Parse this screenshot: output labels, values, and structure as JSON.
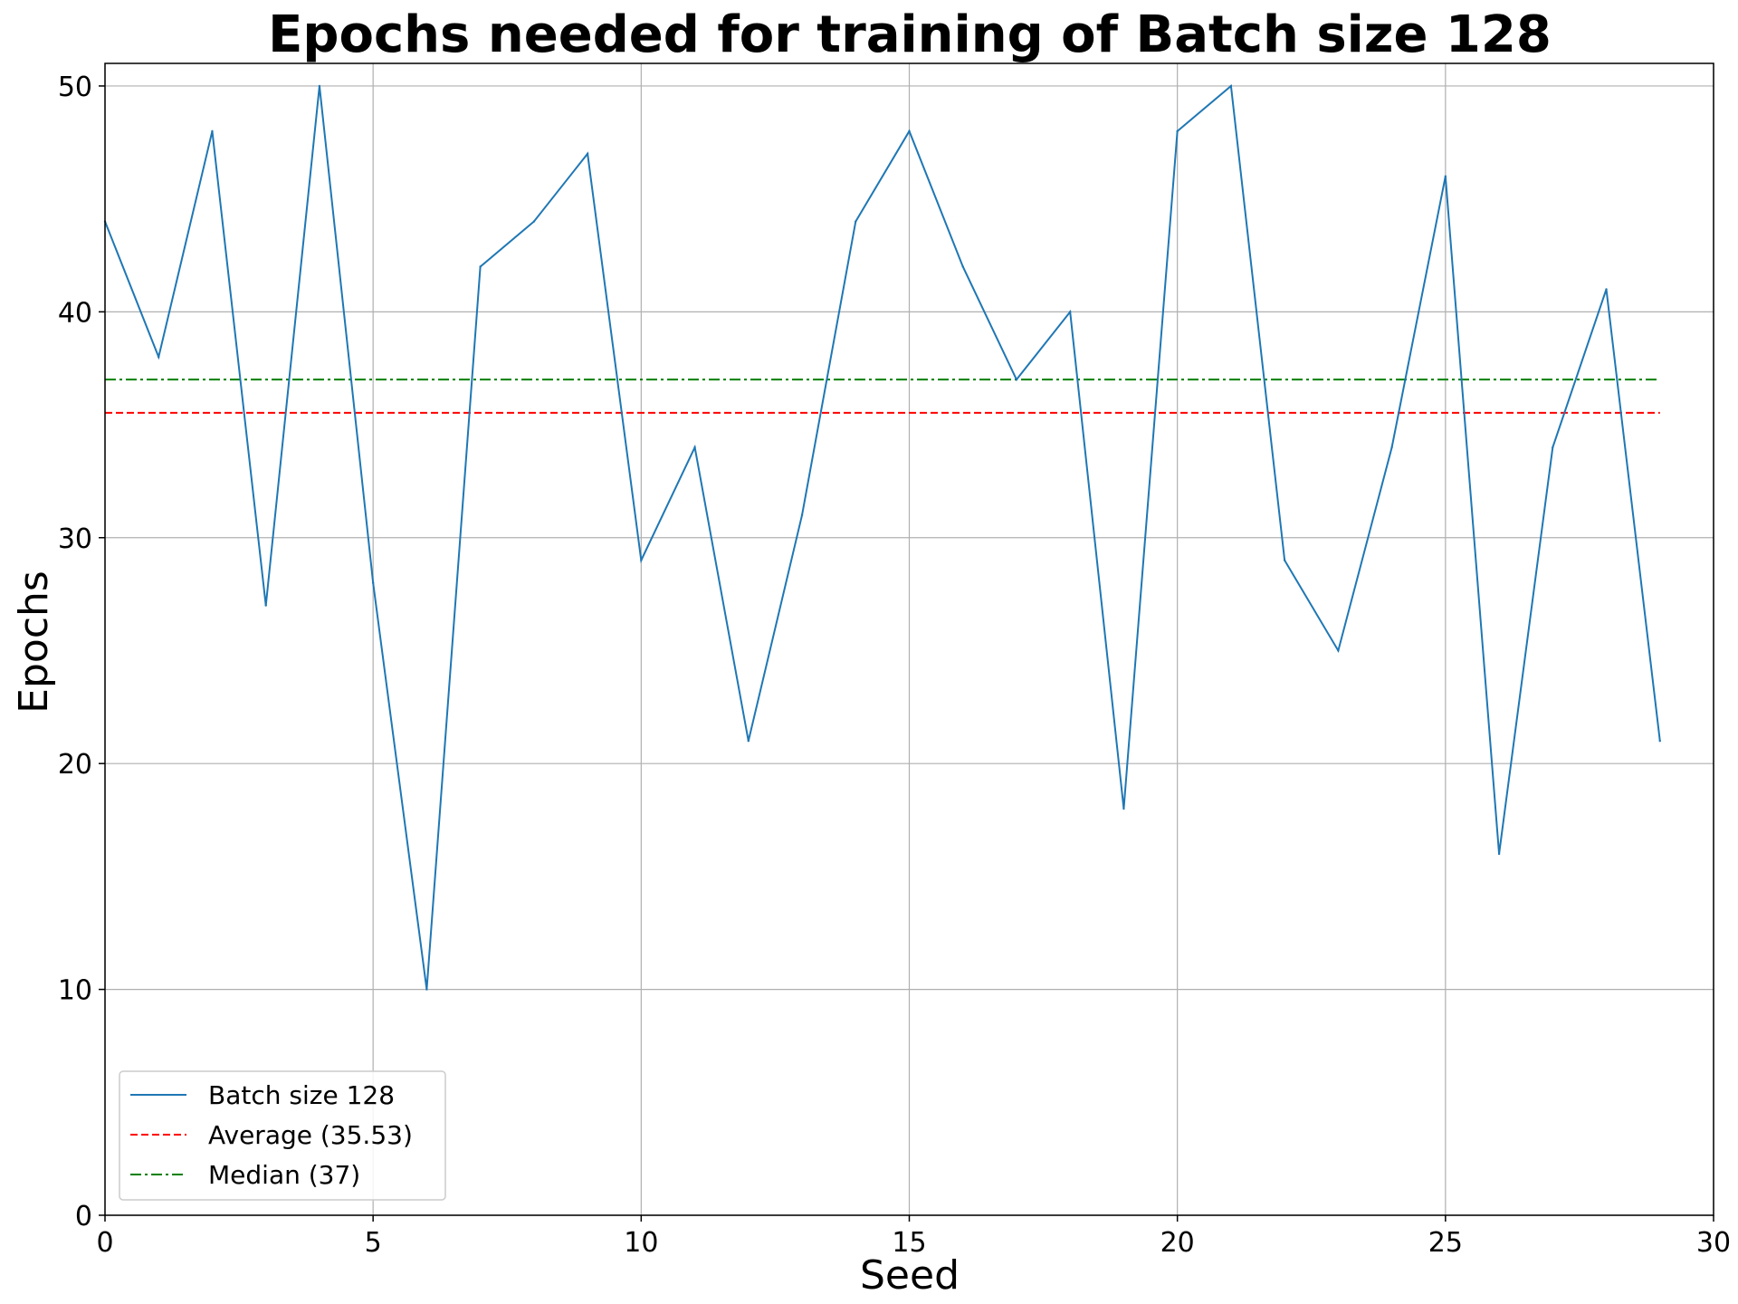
{
  "chart_data": {
    "type": "line",
    "title": "Epochs needed for training of Batch size 128",
    "xlabel": "Seed",
    "ylabel": "Epochs",
    "xlim": [
      0,
      30
    ],
    "ylim": [
      0,
      51
    ],
    "xticks": [
      0,
      5,
      10,
      15,
      20,
      25,
      30
    ],
    "yticks": [
      0,
      10,
      20,
      30,
      40,
      50
    ],
    "grid": true,
    "legend_position": "lower-left",
    "x": [
      0,
      1,
      2,
      3,
      4,
      5,
      6,
      7,
      8,
      9,
      10,
      11,
      12,
      13,
      14,
      15,
      16,
      17,
      18,
      19,
      20,
      21,
      22,
      23,
      24,
      25,
      26,
      27,
      28,
      29
    ],
    "series": [
      {
        "name": "Batch size 128",
        "style": "solid",
        "color": "#1f77b4",
        "values": [
          44,
          38,
          48,
          27,
          50,
          28,
          10,
          42,
          44,
          47,
          29,
          34,
          21,
          31,
          44,
          48,
          42,
          37,
          40,
          18,
          48,
          50,
          29,
          25,
          34,
          46,
          16,
          34,
          41,
          21
        ]
      }
    ],
    "reference_lines": [
      {
        "name": "Average (35.53)",
        "value": 35.53,
        "style": "dashed",
        "color": "#ff0000"
      },
      {
        "name": "Median (37)",
        "value": 37,
        "style": "dashdot",
        "color": "#008000"
      }
    ]
  }
}
